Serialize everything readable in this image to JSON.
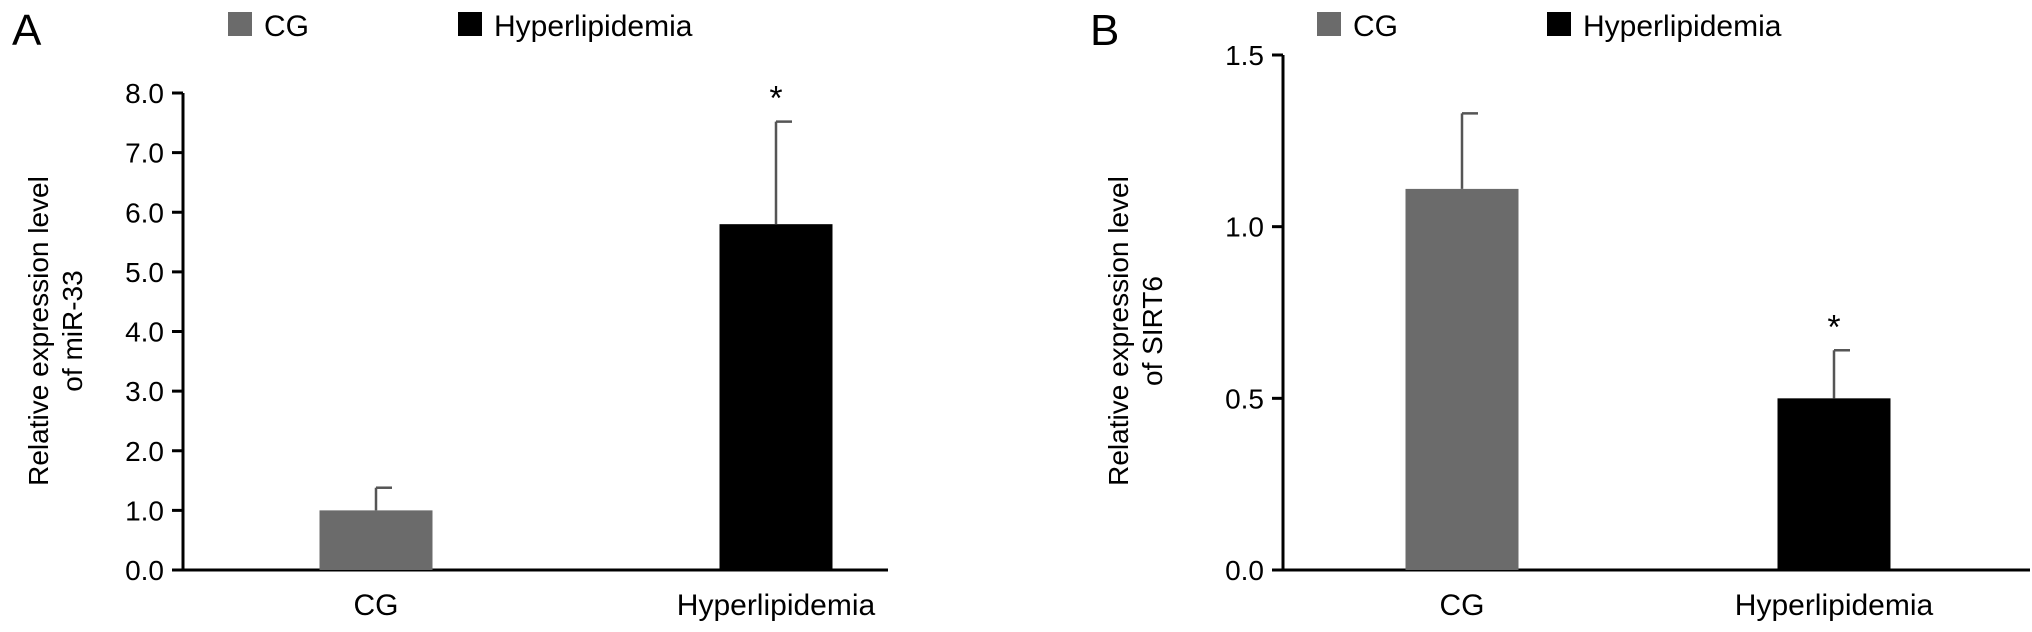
{
  "chart_data": [
    {
      "type": "bar",
      "panel_label": "A",
      "categories": [
        "CG",
        "Hyperlipidemia"
      ],
      "values": [
        1.0,
        5.8
      ],
      "errors": [
        0.38,
        1.72
      ],
      "significance": [
        "",
        "*"
      ],
      "colors": [
        "#6b6b6b",
        "#000000"
      ],
      "legend": {
        "position": "top",
        "entries": [
          {
            "label": "CG",
            "color": "#6b6b6b"
          },
          {
            "label": "Hyperlipidemia",
            "color": "#000000"
          }
        ]
      },
      "ylabel": "Relative expression level of miR-33",
      "ylabel_lines": [
        "Relative expression level",
        "of miR-33"
      ],
      "xlabel": "",
      "ylim": [
        0,
        8
      ],
      "yticks": [
        "0.0",
        "1.0",
        "2.0",
        "3.0",
        "4.0",
        "5.0",
        "6.0",
        "7.0",
        "8.0"
      ],
      "grid": false
    },
    {
      "type": "bar",
      "panel_label": "B",
      "categories": [
        "CG",
        "Hyperlipidemia"
      ],
      "values": [
        1.11,
        0.5
      ],
      "errors": [
        0.22,
        0.14
      ],
      "significance": [
        "",
        "*"
      ],
      "colors": [
        "#6b6b6b",
        "#000000"
      ],
      "legend": {
        "position": "top",
        "entries": [
          {
            "label": "CG",
            "color": "#6b6b6b"
          },
          {
            "label": "Hyperlipidemia",
            "color": "#000000"
          }
        ]
      },
      "ylabel": "Relative expression level of SIRT6",
      "ylabel_lines": [
        "Relative expression level",
        "of SIRT6"
      ],
      "xlabel": "",
      "ylim": [
        0,
        1.5
      ],
      "yticks": [
        "0.0",
        "0.5",
        "1.0",
        "1.5"
      ],
      "grid": false
    }
  ]
}
